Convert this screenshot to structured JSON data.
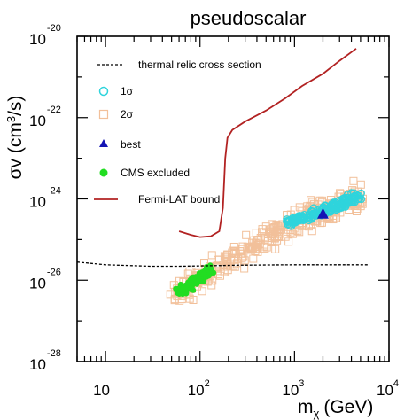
{
  "chart_data": {
    "type": "scatter",
    "title": "pseudoscalar",
    "xlabel": "m",
    "xlabel_sub": "χ",
    "xlabel_unit": "(GeV)",
    "ylabel_left": "σv (cm",
    "ylabel_sup": "3",
    "ylabel_right": "/s)",
    "x_scale": "log",
    "y_scale": "log",
    "xlim": [
      5,
      10000
    ],
    "ylim": [
      1e-28,
      1e-20
    ],
    "x_ticks": [
      {
        "base": "10",
        "exp": ""
      },
      {
        "base": "10",
        "exp": "2"
      },
      {
        "base": "10",
        "exp": "3"
      },
      {
        "base": "10",
        "exp": "4"
      }
    ],
    "y_ticks": [
      {
        "base": "10",
        "exp": "-20"
      },
      {
        "base": "10",
        "exp": "-22"
      },
      {
        "base": "10",
        "exp": "-24"
      },
      {
        "base": "10",
        "exp": "-26"
      },
      {
        "base": "10",
        "exp": "-28"
      }
    ],
    "legend": {
      "position": "top-left",
      "entries": [
        {
          "label": "thermal relic cross section",
          "style": "dashed-line",
          "color": "#000000"
        },
        {
          "label": "1σ",
          "style": "open-circle",
          "color": "#2fd4dc"
        },
        {
          "label": "2σ",
          "style": "open-square",
          "color": "#f2c09a"
        },
        {
          "label": "best",
          "style": "filled-triangle",
          "color": "#1414b4"
        },
        {
          "label": "CMS excluded",
          "style": "filled-circle",
          "color": "#22dd22"
        },
        {
          "label": "Fermi-LAT bound",
          "style": "solid-line",
          "color": "#b22222"
        }
      ]
    },
    "thermal_relic": {
      "x": [
        5,
        10,
        30,
        60,
        100,
        300,
        1000,
        3000,
        6000
      ],
      "y": [
        2.8e-26,
        2.4e-26,
        2.2e-26,
        2.2e-26,
        2.25e-26,
        2.35e-26,
        2.4e-26,
        2.4e-26,
        2.4e-26
      ]
    },
    "fermi_lat": {
      "x": [
        60,
        80,
        100,
        130,
        160,
        175,
        185,
        195,
        220,
        300,
        500,
        800,
        1200,
        2000,
        3000,
        4500
      ],
      "y": [
        1.6e-25,
        1.3e-25,
        1.15e-25,
        1.2e-25,
        1.6e-25,
        6e-25,
        1e-23,
        3.2e-23,
        5e-23,
        8e-23,
        1.5e-22,
        3e-22,
        6e-22,
        1.2e-21,
        2.5e-21,
        5e-21
      ]
    },
    "best": {
      "x": 2000,
      "y": 4.2e-25
    },
    "regions": {
      "two_sigma": {
        "color": "#f2c09a",
        "core": [
          [
            60,
            5e-27
          ],
          [
            100,
            1.2e-26
          ],
          [
            200,
            3e-26
          ],
          [
            400,
            7e-26
          ],
          [
            700,
            1.5e-25
          ],
          [
            1200,
            3e-25
          ],
          [
            2000,
            5e-25
          ],
          [
            3500,
            8e-25
          ],
          [
            5000,
            1.2e-24
          ]
        ],
        "spread": 0.42,
        "count": 380
      },
      "one_sigma": {
        "color": "#2fd4dc",
        "core": [
          [
            800,
            2.5e-25
          ],
          [
            1200,
            3.5e-25
          ],
          [
            2000,
            5e-25
          ],
          [
            3000,
            7e-25
          ],
          [
            4800,
            1.2e-24
          ]
        ],
        "spread": 0.18,
        "count": 190
      },
      "cms_excluded": {
        "color": "#22dd22",
        "core": [
          [
            60,
            5e-27
          ],
          [
            80,
            8e-27
          ],
          [
            100,
            1.2e-26
          ],
          [
            130,
            1.8e-26
          ]
        ],
        "spread": 0.2,
        "count": 110
      }
    }
  }
}
